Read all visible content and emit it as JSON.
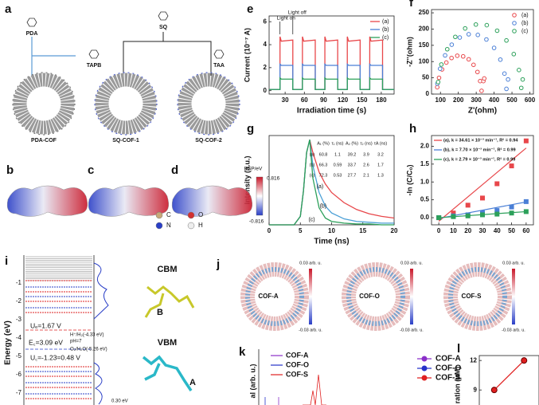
{
  "chart_data": [
    {
      "type": "line",
      "label": "e",
      "xlabel": "Irradiation time (s)",
      "ylabel": "Current (10⁻⁷ A)",
      "annotations": [
        "Light on",
        "Light off"
      ],
      "legend": "upper right",
      "xlim": [
        5,
        200
      ],
      "ylim": [
        -0.3,
        6.5
      ],
      "xticks": [
        30,
        60,
        90,
        120,
        150,
        180
      ],
      "yticks": [
        0,
        2,
        4,
        6
      ],
      "x": [
        5,
        22,
        22,
        24,
        42,
        42,
        57,
        57,
        59,
        77,
        77,
        92,
        92,
        94,
        112,
        112,
        127,
        127,
        129,
        147,
        147,
        162,
        162,
        164,
        182,
        182,
        200
      ],
      "series": [
        {
          "name": "(a)",
          "color": "#e8474a",
          "values": [
            0.1,
            0.1,
            4.7,
            4.3,
            4.4,
            0.1,
            0.1,
            4.7,
            4.3,
            4.4,
            0.1,
            0.1,
            4.7,
            4.3,
            4.4,
            0.1,
            0.1,
            4.7,
            4.3,
            4.4,
            0.1,
            0.1,
            4.7,
            4.3,
            4.4,
            0.1,
            0.1
          ]
        },
        {
          "name": "(b)",
          "color": "#4a7fd6",
          "values": [
            0.1,
            0.1,
            2.3,
            2.2,
            2.2,
            0.1,
            0.1,
            2.3,
            2.2,
            2.2,
            0.1,
            0.1,
            2.3,
            2.2,
            2.2,
            0.1,
            0.1,
            2.3,
            2.2,
            2.2,
            0.1,
            0.1,
            2.3,
            2.2,
            2.2,
            0.1,
            0.1
          ]
        },
        {
          "name": "(c)",
          "color": "#2ca05a",
          "values": [
            0.1,
            0.1,
            1.1,
            1.0,
            1.0,
            0.1,
            0.1,
            1.1,
            1.0,
            1.0,
            0.1,
            0.1,
            1.1,
            1.0,
            1.0,
            0.1,
            0.1,
            1.1,
            1.0,
            1.0,
            0.1,
            0.1,
            1.1,
            1.0,
            1.0,
            0.1,
            0.1
          ]
        }
      ]
    },
    {
      "type": "scatter",
      "label": "f",
      "xlabel": "Z'(ohm)",
      "ylabel": "-Z''(ohm)",
      "legend": "upper right",
      "xlim": [
        50,
        620
      ],
      "ylim": [
        0,
        260
      ],
      "xticks": [
        100,
        200,
        300,
        400,
        500,
        600
      ],
      "yticks": [
        0,
        50,
        100,
        150,
        200,
        250
      ],
      "series": [
        {
          "name": "(a)",
          "color": "#e8474a",
          "x": [
            82,
            92,
            109,
            133,
            162,
            194,
            227,
            258,
            285,
            307,
            322,
            330,
            340,
            345
          ],
          "values": [
            21,
            50,
            76,
            97,
            111,
            118,
            116,
            107,
            90,
            68,
            40,
            10,
            40,
            48
          ]
        },
        {
          "name": "(b)",
          "color": "#4a7fd6",
          "x": [
            83,
            98,
            126,
            163,
            208,
            258,
            309,
            357,
            400,
            435,
            458,
            469,
            478
          ],
          "values": [
            32,
            78,
            119,
            152,
            174,
            184,
            182,
            168,
            142,
            106,
            63,
            16,
            45
          ]
        },
        {
          "name": "(c)",
          "color": "#2ca05a",
          "x": [
            87,
            105,
            138,
            183,
            238,
            298,
            359,
            417,
            469,
            510,
            539,
            552,
            560
          ],
          "values": [
            37,
            91,
            138,
            176,
            202,
            214,
            212,
            195,
            165,
            123,
            74,
            19,
            45
          ]
        }
      ]
    },
    {
      "type": "line",
      "label": "g",
      "xlabel": "Time (ns)",
      "ylabel": "Intensity (a.u.)",
      "xlim": [
        0,
        20
      ],
      "ylim": [
        0,
        1.05
      ],
      "xticks": [
        0,
        5,
        10,
        15,
        20
      ],
      "x": [
        0,
        4,
        5,
        5.5,
        6,
        6.5,
        7,
        8,
        9,
        10,
        12,
        14,
        16,
        18,
        20
      ],
      "series": [
        {
          "name": "(a)",
          "color": "#e8474a",
          "values": [
            0,
            0,
            0.1,
            0.4,
            0.85,
            1,
            0.85,
            0.62,
            0.48,
            0.38,
            0.26,
            0.18,
            0.13,
            0.1,
            0.08
          ]
        },
        {
          "name": "(b)",
          "color": "#4a9fd6",
          "values": [
            0,
            0,
            0.1,
            0.4,
            0.85,
            1,
            0.7,
            0.38,
            0.22,
            0.14,
            0.07,
            0.04,
            0.03,
            0.02,
            0.02
          ]
        },
        {
          "name": "(c)",
          "color": "#2ca05a",
          "values": [
            0,
            0,
            0.1,
            0.4,
            0.85,
            1,
            0.55,
            0.2,
            0.08,
            0.04,
            0.02,
            0.01,
            0.01,
            0,
            0
          ]
        }
      ],
      "table": {
        "header": [
          "A₁ (%)",
          "τ₁ (ns)",
          "A₂ (%)",
          "τ₂ (ns)",
          "τA (ns)"
        ],
        "rows": [
          [
            "(a)",
            60.8,
            1.1,
            39.2,
            3.9,
            3.2
          ],
          [
            "(b)",
            66.3,
            0.59,
            33.7,
            2.6,
            1.7
          ],
          [
            "(c)",
            72.3,
            0.53,
            27.7,
            2.1,
            1.3
          ]
        ]
      }
    },
    {
      "type": "scatter",
      "label": "h",
      "ylabel": "-ln (C/C₀)",
      "legend": "upper left",
      "xlim": [
        -5,
        65
      ],
      "ylim": [
        -0.2,
        2.3
      ],
      "xticks": [
        0,
        10,
        20,
        30,
        40,
        50,
        60
      ],
      "yticks": [
        {
          "value": 0,
          "label": "0.0"
        },
        0.5,
        {
          "value": 1,
          "label": "1.0"
        },
        1.5,
        {
          "value": 2,
          "label": "2.0"
        }
      ],
      "x": [
        0,
        10,
        20,
        30,
        40,
        50,
        60
      ],
      "series": [
        {
          "name": "(a), k = 34.61 × 10⁻³ min⁻¹, R² = 0.94",
          "color": "#e8474a",
          "values": [
            0,
            0.13,
            0.35,
            0.55,
            0.95,
            1.45,
            2.15
          ],
          "fit": {
            "x": [
              0,
              60
            ],
            "values": [
              -0.1,
              1.95
            ]
          }
        },
        {
          "name": "(b), k = 7.70 × 10⁻³ min⁻¹, R² = 0.99",
          "color": "#4a7fd6",
          "values": [
            0,
            0.05,
            0.08,
            0.14,
            0.2,
            0.3,
            0.45
          ],
          "fit": {
            "x": [
              0,
              60
            ],
            "values": [
              -0.02,
              0.44
            ]
          }
        },
        {
          "name": "(c), k = 2.79 × 10⁻³ min⁻¹, R² = 0.99",
          "color": "#2ca05a",
          "values": [
            0,
            0.03,
            0.05,
            0.08,
            0.1,
            0.13,
            0.17
          ],
          "fit": {
            "x": [
              0,
              60
            ],
            "values": [
              0,
              0.17
            ]
          }
        }
      ]
    },
    {
      "type": "line",
      "label": "l",
      "ylabel": "ration (μM)",
      "legend": "upper left",
      "markers": true,
      "categories": [
        null,
        null
      ],
      "ylim": [
        6.5,
        12.5
      ],
      "yticks": [
        9,
        12
      ],
      "series": [
        {
          "name": "COF-A",
          "color": "#8b2fc9",
          "values": [
            null,
            null
          ]
        },
        {
          "name": "COF-O",
          "color": "#2633c9",
          "values": [
            null,
            null
          ]
        },
        {
          "name": "COF-S",
          "color": "#e02020",
          "values": [
            9,
            12
          ]
        }
      ]
    }
  ],
  "panels": {
    "a": {
      "label": "a",
      "monomers": [
        "PDA",
        "SQ",
        "TAPB",
        "TAA"
      ],
      "products": [
        "PDA-COF",
        "SQ-COF-1",
        "SQ-COF-2"
      ]
    },
    "bcd": {
      "labels": [
        "b",
        "c",
        "d"
      ],
      "colorbar": {
        "title": "ESP/eV",
        "max": 0.816,
        "min": -0.816
      },
      "atoms": [
        "C",
        "O",
        "N",
        "H"
      ]
    },
    "i": {
      "label": "i",
      "ylabel": "Energy (eV)",
      "ticks": [
        -1,
        -2,
        -3,
        -4,
        -5,
        -6,
        -7
      ],
      "notes": [
        "Uₑ=1.67 V",
        "E꜀=3.09 eV",
        "U꜀=-1.23=0.48 V",
        "H⁺/H₂(-4.33 eV)",
        "pH=7",
        "O₂/H₂O(-5.26 eV)",
        "0.30 eV"
      ],
      "orbitals": [
        "CBM",
        "VBM"
      ],
      "sites": [
        "B",
        "A"
      ]
    },
    "j": {
      "label": "j",
      "rings": [
        "COF-A",
        "COF-O",
        "COF-S"
      ],
      "scale_max": "0.03 arb. u.",
      "scale_min": "-0.03 arb. u."
    },
    "k": {
      "label": "k",
      "ylabel": "al (arb. u.)",
      "legend": [
        "COF-A",
        "COF-O",
        "COF-S"
      ]
    }
  }
}
